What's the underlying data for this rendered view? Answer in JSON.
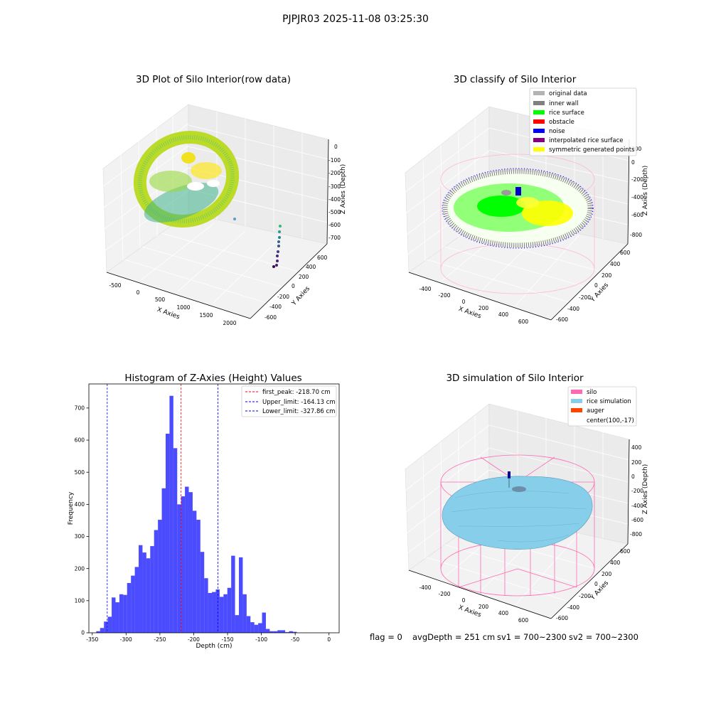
{
  "suptitle": "PJPJR03 2025-11-08 03:25:30",
  "footer": {
    "flag": "flag = 0",
    "avg_depth": "avgDepth = 251 cm",
    "sv1": "sv1 = 700~2300",
    "sv2": "sv2 = 700~2300"
  },
  "panel1": {
    "title": "3D Plot of Silo Interior(row data)",
    "xlabel": "X Axies",
    "ylabel": "Y Axies",
    "zlabel": "Z Axies (Depth)",
    "xticks": [
      "-500",
      "0",
      "500",
      "1000",
      "1500",
      "2000"
    ],
    "yticks": [
      "-600",
      "-400",
      "-200",
      "0",
      "200",
      "400",
      "600"
    ],
    "zticks": [
      "0",
      "-100",
      "-200",
      "-300",
      "-400",
      "-500",
      "-600",
      "-700"
    ]
  },
  "panel2": {
    "title": "3D classify of Silo Interior",
    "xlabel": "X Axies",
    "ylabel": "Y Axies",
    "zlabel": "Z Axies (Depth)",
    "xticks": [
      "-400",
      "-200",
      "0",
      "200",
      "400",
      "600"
    ],
    "yticks": [
      "-600",
      "-400",
      "-200",
      "0",
      "200",
      "400",
      "600"
    ],
    "zticks": [
      "200",
      "0",
      "-200",
      "-400",
      "-600",
      "-800"
    ],
    "legend": [
      {
        "label": "original data",
        "color": "#b3b3b3"
      },
      {
        "label": "inner wall",
        "color": "#808080"
      },
      {
        "label": "rice surface",
        "color": "#00ff00"
      },
      {
        "label": "obstacle",
        "color": "#ff0000"
      },
      {
        "label": "noise",
        "color": "#0000ff"
      },
      {
        "label": "interpolated rice surface",
        "color": "#800080"
      },
      {
        "label": "symmetric generated points",
        "color": "#ffff00"
      }
    ]
  },
  "panel4": {
    "title": "3D simulation of Silo Interior",
    "xlabel": "X Axies",
    "ylabel": "Y Axies",
    "zlabel": "Z Axies (Depth)",
    "xticks": [
      "-400",
      "-200",
      "0",
      "200",
      "400",
      "600"
    ],
    "yticks": [
      "-600",
      "-400",
      "-200",
      "0",
      "200",
      "400",
      "600"
    ],
    "zticks": [
      "400",
      "200",
      "0",
      "-200",
      "-400",
      "-600",
      "-800"
    ],
    "legend": [
      {
        "label": "silo",
        "color": "#ff69b4"
      },
      {
        "label": "rice simulation",
        "color": "#87ceeb"
      },
      {
        "label": "auger",
        "color": "#ff4500"
      },
      {
        "label": "center(100,-17)",
        "color": ""
      }
    ]
  },
  "chart_data": {
    "type": "bar",
    "title": "Histogram of Z-Axies (Height) Values",
    "xlabel": "Depth (cm)",
    "ylabel": "Frequency",
    "xlim": [
      -355,
      15
    ],
    "ylim": [
      0,
      775
    ],
    "xticks": [
      -350,
      -300,
      -250,
      -200,
      -150,
      -100,
      -50,
      0
    ],
    "yticks": [
      0,
      100,
      200,
      300,
      400,
      500,
      600,
      700
    ],
    "bin_width": 5.7,
    "bin_start": -344.1,
    "bar_color": "#0000ff",
    "values": [
      5,
      15,
      35,
      50,
      110,
      95,
      120,
      118,
      155,
      178,
      205,
      273,
      250,
      232,
      270,
      320,
      352,
      450,
      620,
      738,
      575,
      400,
      425,
      455,
      438,
      380,
      352,
      252,
      170,
      124,
      127,
      135,
      112,
      120,
      140,
      240,
      55,
      235,
      120,
      52,
      33,
      25,
      30,
      63,
      12,
      5,
      5,
      8,
      8,
      2,
      5,
      3
    ],
    "lines": [
      {
        "label": "first_peak: -218.70 cm",
        "x": -218.7,
        "color": "#ff0000"
      },
      {
        "label": "Upper_limit: -164.13 cm",
        "x": -164.13,
        "color": "#0000ff"
      },
      {
        "label": "Lower_limit: -327.86 cm",
        "x": -327.86,
        "color": "#0000ff"
      }
    ]
  }
}
